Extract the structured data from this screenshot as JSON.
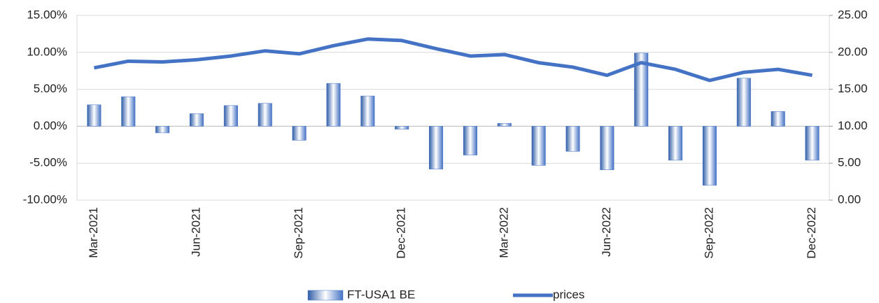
{
  "chart_data": {
    "type": "bar",
    "categories": [
      "Mar-2021",
      null,
      null,
      "Jun-2021",
      null,
      null,
      "Sep-2021",
      null,
      null,
      "Dec-2021",
      null,
      null,
      "Mar-2022",
      null,
      null,
      "Jun-2022",
      null,
      null,
      "Sep-2022",
      null,
      null,
      "Dec-2022"
    ],
    "series": [
      {
        "name": "FT-USA1 BE",
        "type": "bar",
        "color": "#4472c4",
        "values": [
          2.9,
          4.0,
          -0.9,
          1.7,
          2.8,
          3.1,
          -1.9,
          5.8,
          4.1,
          -0.4,
          -5.8,
          -3.9,
          0.4,
          -5.3,
          -3.4,
          -5.9,
          9.9,
          -4.6,
          -8.0,
          6.5,
          2.0,
          -4.6
        ]
      },
      {
        "name": "prices",
        "type": "line",
        "axis": "y2",
        "color": "#4472c4",
        "values": [
          17.9,
          18.8,
          18.7,
          19.0,
          19.5,
          20.2,
          19.8,
          20.9,
          21.8,
          21.6,
          20.5,
          19.5,
          19.7,
          18.6,
          18.0,
          16.9,
          18.6,
          17.7,
          16.2,
          17.3,
          17.7,
          16.9
        ]
      }
    ],
    "ylim": [
      -10,
      15
    ],
    "yticks": [
      {
        "value": -10,
        "label": "-10.00%"
      },
      {
        "value": -5,
        "label": "-5.00%"
      },
      {
        "value": 0,
        "label": "0.00%"
      },
      {
        "value": 5,
        "label": "5.00%"
      },
      {
        "value": 10,
        "label": "10.00%"
      },
      {
        "value": 15,
        "label": "15.00%"
      }
    ],
    "y2lim": [
      0,
      25
    ],
    "y2ticks": [
      {
        "value": 0,
        "label": "0.00"
      },
      {
        "value": 5,
        "label": "5.00"
      },
      {
        "value": 10,
        "label": "10.00"
      },
      {
        "value": 15,
        "label": "15.00"
      },
      {
        "value": 20,
        "label": "20.00"
      },
      {
        "value": 25,
        "label": "25.00"
      }
    ],
    "grid": true,
    "legend": "bottom"
  }
}
